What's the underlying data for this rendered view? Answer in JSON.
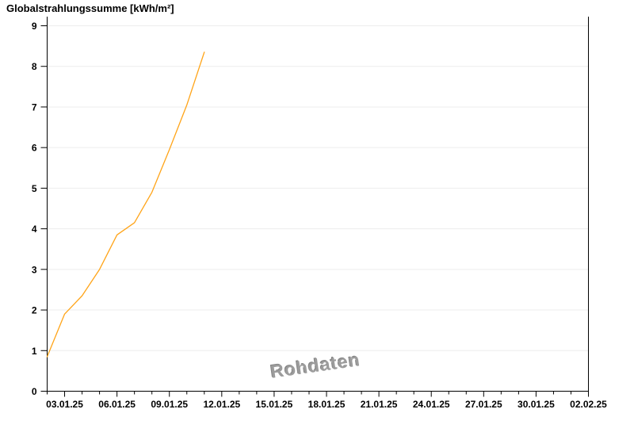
{
  "chart_data": {
    "type": "line",
    "title": "Globalstrahlungssumme [kWh/m²]",
    "unit": "kWh/m²",
    "watermark": "Rohdaten",
    "x": [
      "02.01.25",
      "03.01.25",
      "04.01.25",
      "05.01.25",
      "06.01.25",
      "07.01.25",
      "08.01.25",
      "09.01.25",
      "10.01.25",
      "11.01.25"
    ],
    "values": [
      0.85,
      1.9,
      2.35,
      3.0,
      3.85,
      4.15,
      4.9,
      5.95,
      7.05,
      8.35
    ],
    "ylim": [
      0,
      9
    ],
    "y_tick_labels": [
      "0",
      "1",
      "2",
      "3",
      "4",
      "5",
      "6",
      "7",
      "8",
      "9"
    ],
    "x_axis_start": "02.01.25",
    "x_axis_end": "02.02.25",
    "x_total_days": 31,
    "x_major_tick_labels": [
      "03.01.25",
      "06.01.25",
      "09.01.25",
      "12.01.25",
      "15.01.25",
      "18.01.25",
      "21.01.25",
      "24.01.25",
      "27.01.25",
      "30.01.25",
      "02.02.25"
    ],
    "x_major_tick_first_day_offset": 1,
    "x_major_tick_interval_days": 3,
    "x_minor_tick_interval_days": 1,
    "grid": "horizontal",
    "legend": "none",
    "colors": {
      "line": "#ffa418",
      "grid": "#ededed",
      "axis": "#000000",
      "labels": "#000000",
      "watermark": "#9c9c9c",
      "background": "#ffffff"
    }
  }
}
